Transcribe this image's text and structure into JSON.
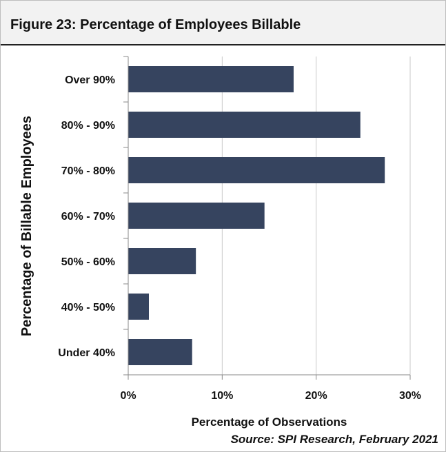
{
  "figure": {
    "title": "Figure 23:  Percentage of Employees Billable",
    "source": "Source: SPI Research, February 2021"
  },
  "colors": {
    "bar": "#36445f",
    "grid": "#c8c8c8",
    "axis": "#888888",
    "header_bg": "#f2f2f2"
  },
  "chart_data": {
    "type": "bar",
    "orientation": "horizontal",
    "categories": [
      "Over 90%",
      "80% - 90%",
      "70% - 80%",
      "60% - 70%",
      "50% - 60%",
      "40% - 50%",
      "Under 40%"
    ],
    "values": [
      17.6,
      24.7,
      27.3,
      14.5,
      7.2,
      2.2,
      6.8
    ],
    "xlabel": "Percentage of Observations",
    "ylabel": "Percentage of Billable Employees",
    "xlim": [
      0,
      30
    ],
    "xticks": [
      0,
      10,
      20,
      30
    ],
    "xtick_labels": [
      "0%",
      "10%",
      "20%",
      "30%"
    ],
    "grid": true,
    "legend": "none"
  }
}
